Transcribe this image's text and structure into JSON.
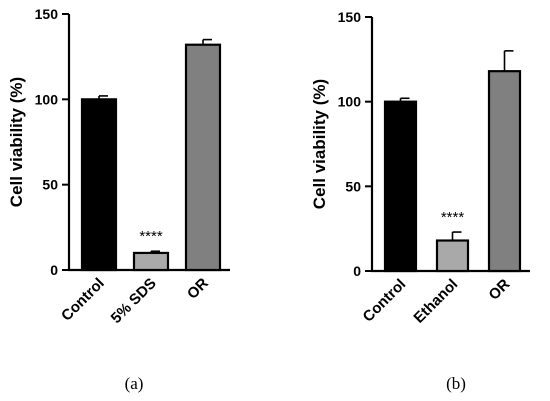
{
  "chart_data": [
    {
      "type": "bar",
      "panel_label": "(a)",
      "ylabel": "Cell viability (%)",
      "ylim": [
        0,
        150
      ],
      "yticks": [
        0,
        50,
        100,
        150
      ],
      "categories": [
        "Control",
        "5% SDS",
        "OR"
      ],
      "values": [
        100,
        10,
        132
      ],
      "errors": [
        2,
        1,
        3
      ],
      "bar_colors": [
        "#000000",
        "#a9a9a9",
        "#808080"
      ],
      "annotations": [
        {
          "category": "5% SDS",
          "text": "****"
        }
      ]
    },
    {
      "type": "bar",
      "panel_label": "(b)",
      "ylabel": "Cell viability (%)",
      "ylim": [
        0,
        150
      ],
      "yticks": [
        0,
        50,
        100,
        150
      ],
      "categories": [
        "Control",
        "Ethanol",
        "OR"
      ],
      "values": [
        100,
        18,
        118
      ],
      "errors": [
        2,
        5,
        12
      ],
      "bar_colors": [
        "#000000",
        "#a9a9a9",
        "#808080"
      ],
      "annotations": [
        {
          "category": "Ethanol",
          "text": "****"
        }
      ]
    }
  ]
}
